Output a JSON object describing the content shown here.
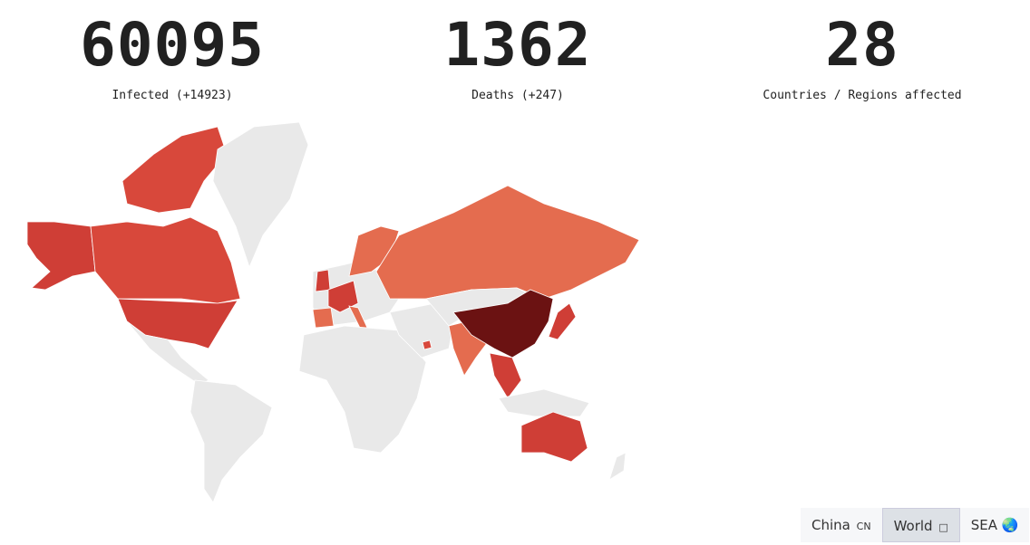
{
  "stats": [
    {
      "value": "60095",
      "label": "Infected (+14923)"
    },
    {
      "value": "1362",
      "label": "Deaths (+247)"
    },
    {
      "value": "28",
      "label": "Countries / Regions affected"
    }
  ],
  "map": {
    "colors": {
      "none": "#e9e9e9",
      "low": "#e46c4f",
      "mid": "#d8483b",
      "high": "#cf3e36",
      "china": "#6b1212",
      "border": "#ffffff"
    }
  },
  "view_switch": [
    {
      "label": "China",
      "icon": "CN",
      "active": false
    },
    {
      "label": "World",
      "icon": "□",
      "active": true
    },
    {
      "label": "SEA",
      "icon": "🌏",
      "active": false
    }
  ]
}
